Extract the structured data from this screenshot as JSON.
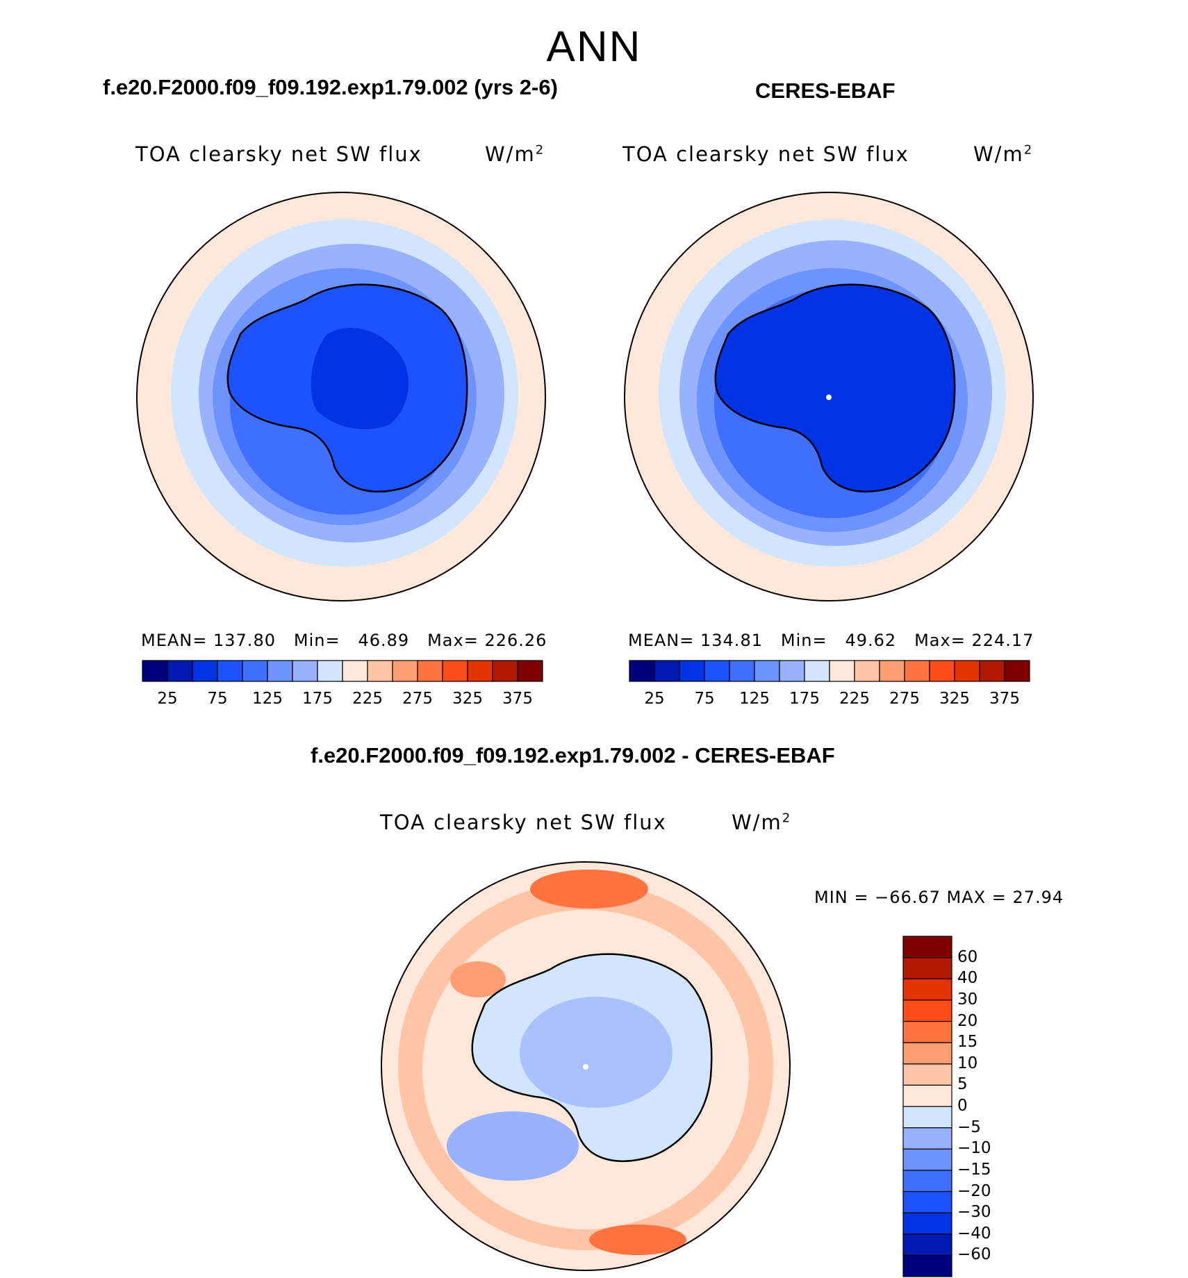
{
  "season_title": "ANN",
  "panels": [
    {
      "case_title": "f.e20.F2000.f09_f09.192.exp1.79.002 (yrs 2-6)",
      "var_label": "TOA clearsky net SW flux",
      "units": "W/m",
      "units_sup": "2",
      "mean_label": "MEAN=",
      "mean": "137.80",
      "min_label": "Min=",
      "min": "46.89",
      "max_label": "Max=",
      "max": "226.26"
    },
    {
      "case_title": "CERES-EBAF",
      "var_label": "TOA clearsky net SW flux",
      "units": "W/m",
      "units_sup": "2",
      "mean_label": "MEAN=",
      "mean": "134.81",
      "min_label": "Min=",
      "min": "49.62",
      "max_label": "Max=",
      "max": "224.17"
    }
  ],
  "diff_panel": {
    "case_title": "f.e20.F2000.f09_f09.192.exp1.79.002 - CERES-EBAF",
    "var_label": "TOA clearsky net SW flux",
    "units": "W/m",
    "units_sup": "2",
    "minmax_text": "MIN = −66.67 MAX =   27.94"
  },
  "chart_data": [
    {
      "type": "heatmap",
      "projection": "south-polar-stereographic",
      "title": "TOA clearsky net SW flux",
      "units": "W/m2",
      "colorbar": {
        "orientation": "horizontal",
        "colors": [
          "#00007f",
          "#0019b2",
          "#0033e5",
          "#1f52ff",
          "#406eff",
          "#6e93ff",
          "#99b2ff",
          "#d1e5ff",
          "#ffe8d9",
          "#ffc3a6",
          "#ff9e73",
          "#ff7340",
          "#ff4d19",
          "#e53300",
          "#b21900",
          "#7f0000"
        ],
        "tick_labels": [
          "25",
          "75",
          "125",
          "175",
          "225",
          "275",
          "325",
          "375"
        ]
      },
      "stats": {
        "mean": 137.8,
        "min": 46.89,
        "max": 226.26
      }
    },
    {
      "type": "heatmap",
      "projection": "south-polar-stereographic",
      "title": "TOA clearsky net SW flux",
      "units": "W/m2",
      "colorbar": {
        "orientation": "horizontal",
        "colors": [
          "#00007f",
          "#0019b2",
          "#0033e5",
          "#1f52ff",
          "#406eff",
          "#6e93ff",
          "#99b2ff",
          "#d1e5ff",
          "#ffe8d9",
          "#ffc3a6",
          "#ff9e73",
          "#ff7340",
          "#ff4d19",
          "#e53300",
          "#b21900",
          "#7f0000"
        ],
        "tick_labels": [
          "25",
          "75",
          "125",
          "175",
          "225",
          "275",
          "325",
          "375"
        ]
      },
      "stats": {
        "mean": 134.81,
        "min": 49.62,
        "max": 224.17
      }
    },
    {
      "type": "heatmap",
      "projection": "south-polar-stereographic",
      "title": "TOA clearsky net SW flux",
      "units": "W/m2",
      "colorbar": {
        "orientation": "vertical",
        "colors": [
          "#00007f",
          "#0019b2",
          "#0033e5",
          "#1f52ff",
          "#406eff",
          "#6e93ff",
          "#99b2ff",
          "#d1e5ff",
          "#ffe8d9",
          "#ffc3a6",
          "#ff9e73",
          "#ff7340",
          "#ff4d19",
          "#e53300",
          "#b21900",
          "#7f0000"
        ],
        "tick_labels": [
          "−60",
          "−40",
          "−30",
          "−20",
          "−15",
          "−10",
          "−5",
          "0",
          "5",
          "10",
          "15",
          "20",
          "30",
          "40",
          "60"
        ]
      },
      "stats": {
        "min": -66.67,
        "max": 27.94
      }
    }
  ]
}
